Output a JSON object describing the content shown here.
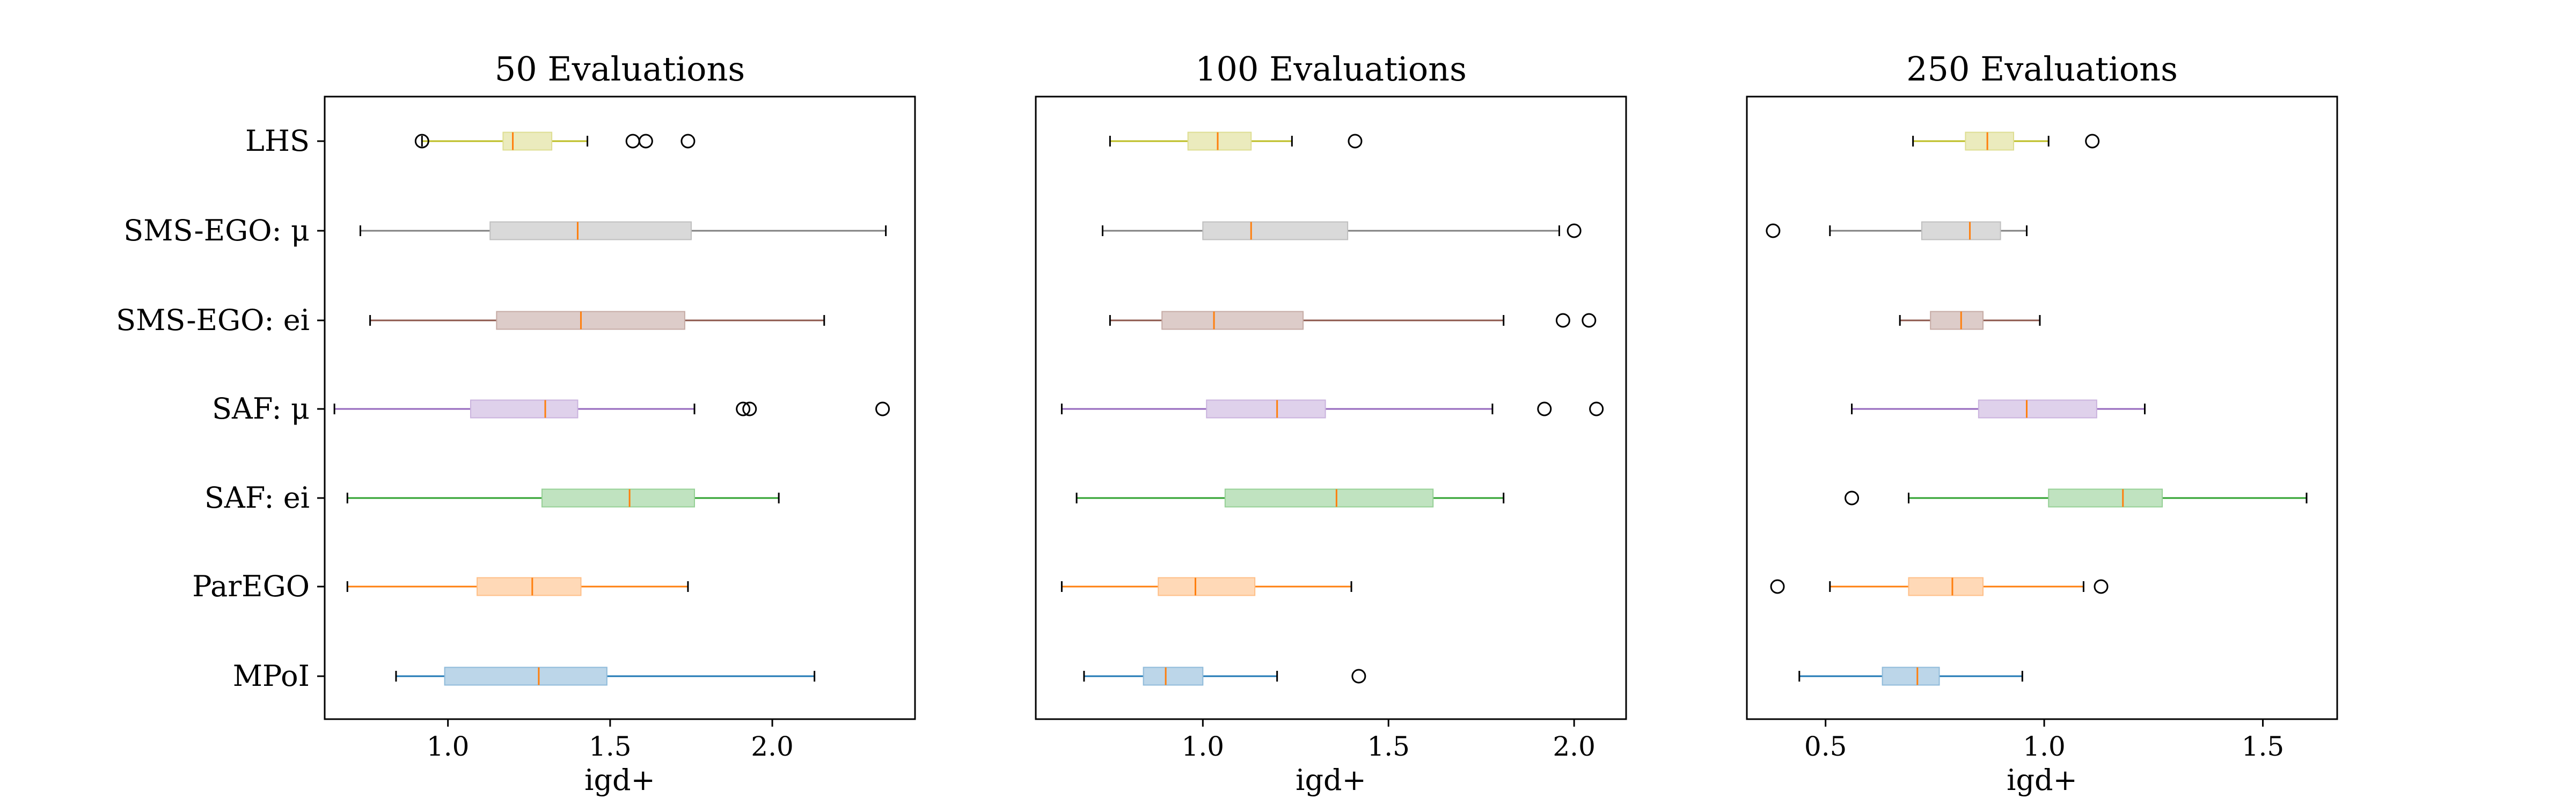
{
  "chart_data": {
    "type": "box",
    "categories": [
      "LHS",
      "SMS-EGO: μ",
      "SMS-EGO: ei",
      "SAF: μ",
      "SAF: ei",
      "ParEGO",
      "MPoI"
    ],
    "series_colors": [
      "#bcbd22",
      "#7f7f7f",
      "#8c564b",
      "#9467bd",
      "#2ca02c",
      "#ff7f0e",
      "#1f77b4"
    ],
    "median_color": "#ff7f0e",
    "orientation": "horizontal",
    "grid": false,
    "legend": "none",
    "panels": [
      {
        "title": "50 Evaluations",
        "xlabel": "igd+",
        "xlim": [
          0.62,
          2.44
        ],
        "xticks": [
          1.0,
          1.5,
          2.0
        ],
        "xtick_labels": [
          "1.0",
          "1.5",
          "2.0"
        ],
        "boxes": [
          {
            "label": "LHS",
            "whisker_low": 0.92,
            "q1": 1.17,
            "median": 1.2,
            "q3": 1.32,
            "whisker_high": 1.43,
            "outliers": [
              0.92,
              1.57,
              1.61,
              1.74
            ]
          },
          {
            "label": "SMS-EGO: μ",
            "whisker_low": 0.73,
            "q1": 1.13,
            "median": 1.4,
            "q3": 1.75,
            "whisker_high": 2.35,
            "outliers": []
          },
          {
            "label": "SMS-EGO: ei",
            "whisker_low": 0.76,
            "q1": 1.15,
            "median": 1.41,
            "q3": 1.73,
            "whisker_high": 2.16,
            "outliers": []
          },
          {
            "label": "SAF: μ",
            "whisker_low": 0.65,
            "q1": 1.07,
            "median": 1.3,
            "q3": 1.4,
            "whisker_high": 1.76,
            "outliers": [
              1.91,
              1.93,
              2.34
            ]
          },
          {
            "label": "SAF: ei",
            "whisker_low": 0.69,
            "q1": 1.29,
            "median": 1.56,
            "q3": 1.76,
            "whisker_high": 2.02,
            "outliers": []
          },
          {
            "label": "ParEGO",
            "whisker_low": 0.69,
            "q1": 1.09,
            "median": 1.26,
            "q3": 1.41,
            "whisker_high": 1.74,
            "outliers": []
          },
          {
            "label": "MPoI",
            "whisker_low": 0.84,
            "q1": 0.99,
            "median": 1.28,
            "q3": 1.49,
            "whisker_high": 2.13,
            "outliers": []
          }
        ]
      },
      {
        "title": "100 Evaluations",
        "xlabel": "igd+",
        "xlim": [
          0.55,
          2.14
        ],
        "xticks": [
          1.0,
          1.5,
          2.0
        ],
        "xtick_labels": [
          "1.0",
          "1.5",
          "2.0"
        ],
        "boxes": [
          {
            "label": "LHS",
            "whisker_low": 0.75,
            "q1": 0.96,
            "median": 1.04,
            "q3": 1.13,
            "whisker_high": 1.24,
            "outliers": [
              1.41
            ]
          },
          {
            "label": "SMS-EGO: μ",
            "whisker_low": 0.73,
            "q1": 1.0,
            "median": 1.13,
            "q3": 1.39,
            "whisker_high": 1.96,
            "outliers": [
              2.0
            ]
          },
          {
            "label": "SMS-EGO: ei",
            "whisker_low": 0.75,
            "q1": 0.89,
            "median": 1.03,
            "q3": 1.27,
            "whisker_high": 1.81,
            "outliers": [
              1.97,
              2.04
            ]
          },
          {
            "label": "SAF: μ",
            "whisker_low": 0.62,
            "q1": 1.01,
            "median": 1.2,
            "q3": 1.33,
            "whisker_high": 1.78,
            "outliers": [
              1.92,
              2.06
            ]
          },
          {
            "label": "SAF: ei",
            "whisker_low": 0.66,
            "q1": 1.06,
            "median": 1.36,
            "q3": 1.62,
            "whisker_high": 1.81,
            "outliers": []
          },
          {
            "label": "ParEGO",
            "whisker_low": 0.62,
            "q1": 0.88,
            "median": 0.98,
            "q3": 1.14,
            "whisker_high": 1.4,
            "outliers": []
          },
          {
            "label": "MPoI",
            "whisker_low": 0.68,
            "q1": 0.84,
            "median": 0.9,
            "q3": 1.0,
            "whisker_high": 1.2,
            "outliers": [
              1.42
            ]
          }
        ]
      },
      {
        "title": "250 Evaluations",
        "xlabel": "igd+",
        "xlim": [
          0.32,
          1.67
        ],
        "xticks": [
          0.5,
          1.0,
          1.5
        ],
        "xtick_labels": [
          "0.5",
          "1.0",
          "1.5"
        ],
        "boxes": [
          {
            "label": "LHS",
            "whisker_low": 0.7,
            "q1": 0.82,
            "median": 0.87,
            "q3": 0.93,
            "whisker_high": 1.01,
            "outliers": [
              1.11
            ]
          },
          {
            "label": "SMS-EGO: μ",
            "whisker_low": 0.51,
            "q1": 0.72,
            "median": 0.83,
            "q3": 0.9,
            "whisker_high": 0.96,
            "outliers": [
              0.38
            ]
          },
          {
            "label": "SMS-EGO: ei",
            "whisker_low": 0.67,
            "q1": 0.74,
            "median": 0.81,
            "q3": 0.86,
            "whisker_high": 0.99,
            "outliers": []
          },
          {
            "label": "SAF: μ",
            "whisker_low": 0.56,
            "q1": 0.85,
            "median": 0.96,
            "q3": 1.12,
            "whisker_high": 1.23,
            "outliers": []
          },
          {
            "label": "SAF: ei",
            "whisker_low": 0.69,
            "q1": 1.01,
            "median": 1.18,
            "q3": 1.27,
            "whisker_high": 1.6,
            "outliers": [
              0.56
            ]
          },
          {
            "label": "ParEGO",
            "whisker_low": 0.51,
            "q1": 0.69,
            "median": 0.79,
            "q3": 0.86,
            "whisker_high": 1.09,
            "outliers": [
              0.39,
              1.13
            ]
          },
          {
            "label": "MPoI",
            "whisker_low": 0.44,
            "q1": 0.63,
            "median": 0.71,
            "q3": 0.76,
            "whisker_high": 0.95,
            "outliers": []
          }
        ]
      }
    ]
  }
}
